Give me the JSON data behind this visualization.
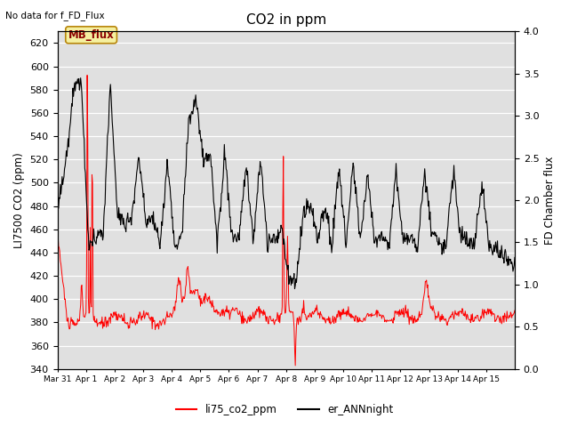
{
  "title": "CO2 in ppm",
  "ylabel_left": "LI7500 CO2 (ppm)",
  "ylabel_right": "FD Chamber flux",
  "ylim_left": [
    340,
    630
  ],
  "ylim_right": [
    0.0,
    4.0
  ],
  "yticks_left": [
    340,
    360,
    380,
    400,
    420,
    440,
    460,
    480,
    500,
    520,
    540,
    560,
    580,
    600,
    620
  ],
  "yticks_right": [
    0.0,
    0.5,
    1.0,
    1.5,
    2.0,
    2.5,
    3.0,
    3.5,
    4.0
  ],
  "no_data_text": "No data for f_FD_Flux",
  "mb_flux_label": "MB_flux",
  "legend_labels": [
    "li75_co2_ppm",
    "er_ANNnight"
  ],
  "legend_colors": [
    "red",
    "black"
  ],
  "bg_color": "#e0e0e0",
  "fig_bg": "#ffffff",
  "xtick_labels": [
    "Mar 31",
    "Apr 1",
    "Apr 2",
    "Apr 3",
    "Apr 4",
    "Apr 5",
    "Apr 6",
    "Apr 7",
    "Apr 8",
    "Apr 9",
    "Apr 10",
    "Apr 11",
    "Apr 12",
    "Apr 13",
    "Apr 14",
    "Apr 15"
  ]
}
